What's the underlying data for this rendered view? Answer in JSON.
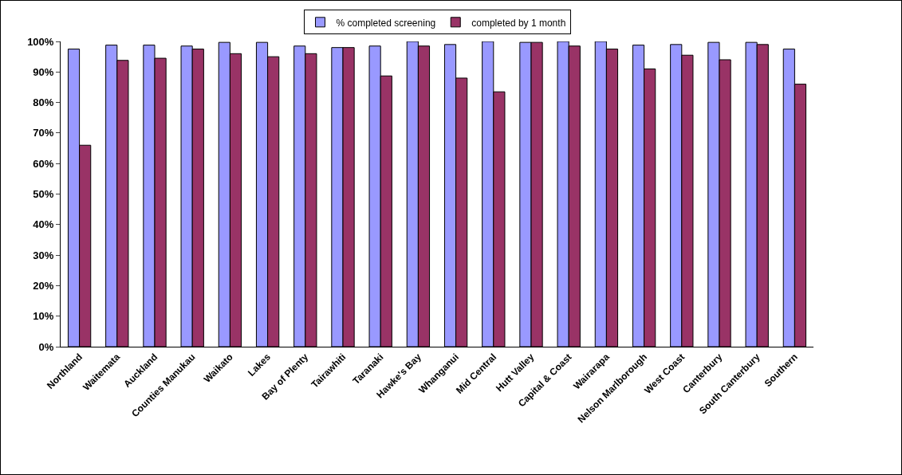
{
  "chart_data": {
    "type": "bar",
    "categories": [
      "Northland",
      "Waitemata",
      "Auckland",
      "Counties Manukau",
      "Waikato",
      "Lakes",
      "Bay of Plenty",
      "Tairawhiti",
      "Taranaki",
      "Hawke's Bay",
      "Whanganui",
      "Mid Central",
      "Hutt Valley",
      "Capital & Coast",
      "Wairarapa",
      "Nelson Marlborough",
      "West Coast",
      "Canterbury",
      "South Canterbury",
      "Southern"
    ],
    "series": [
      {
        "name": "% completed screening",
        "color": "#9999ff",
        "values": [
          97.5,
          98.8,
          98.8,
          98.5,
          99.7,
          99.7,
          98.5,
          98,
          98.5,
          100,
          99,
          100,
          99.7,
          100,
          100,
          98.8,
          99,
          99.7,
          99.7,
          97.5
        ]
      },
      {
        "name": "completed by 1 month",
        "color": "#993366",
        "values": [
          66,
          93.8,
          94.5,
          97.5,
          96,
          95,
          96,
          98,
          88.7,
          98.5,
          88,
          83.5,
          99.7,
          98.5,
          97.5,
          91,
          95.5,
          94,
          99,
          86
        ]
      }
    ],
    "ylim": [
      0,
      100
    ],
    "yticks": [
      {
        "value": 0,
        "label": "0%"
      },
      {
        "value": 10,
        "label": "10%"
      },
      {
        "value": 20,
        "label": "20%"
      },
      {
        "value": 30,
        "label": "30%"
      },
      {
        "value": 40,
        "label": "40%"
      },
      {
        "value": 50,
        "label": "50%"
      },
      {
        "value": 60,
        "label": "60%"
      },
      {
        "value": 70,
        "label": "70%"
      },
      {
        "value": 80,
        "label": "80%"
      },
      {
        "value": 90,
        "label": "90%"
      },
      {
        "value": 100,
        "label": "100%"
      }
    ],
    "grid": false,
    "legend": "top"
  }
}
